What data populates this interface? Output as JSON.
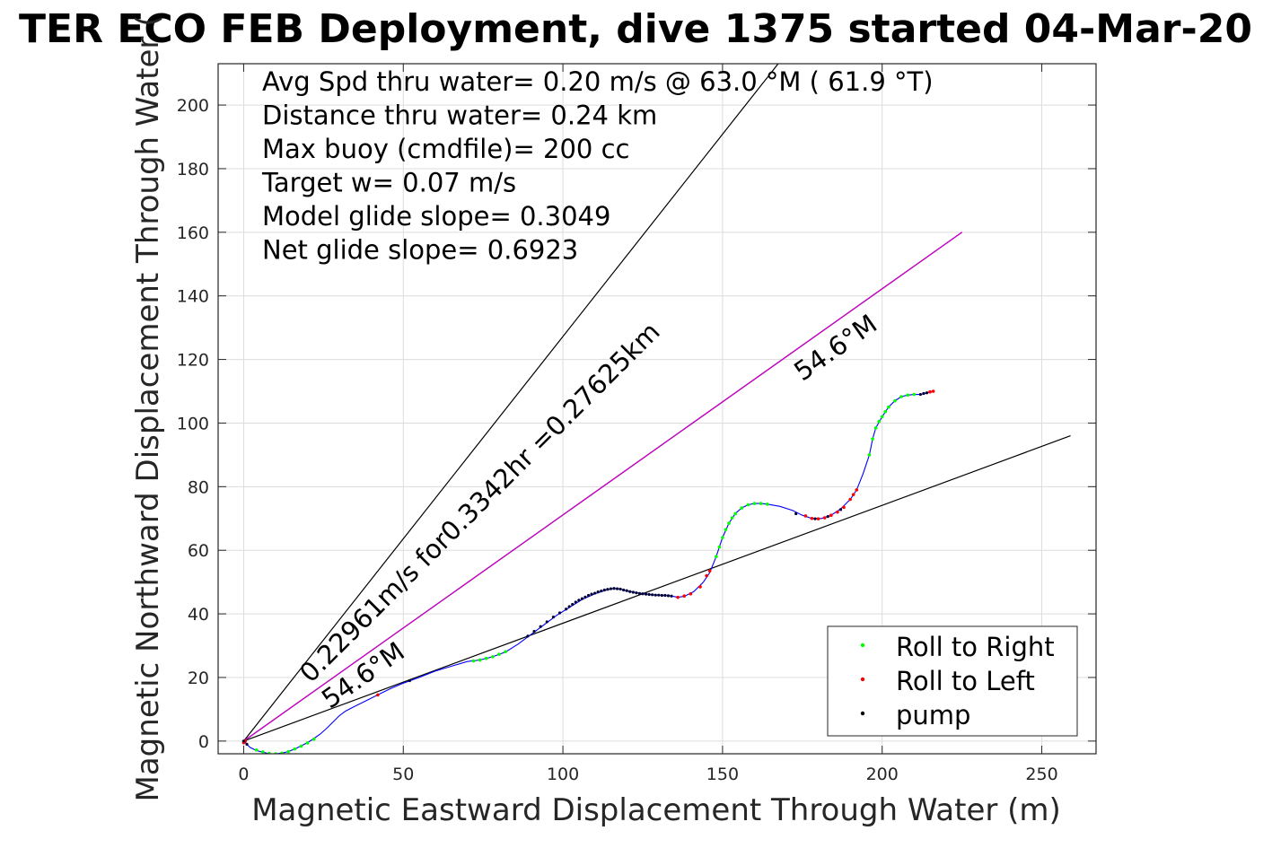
{
  "chart_data": {
    "type": "line",
    "title": "TER ECO FEB Deployment, dive 1375 started 04-Mar-20",
    "xlabel": "Magnetic Eastward Displacement Through Water (m)",
    "ylabel": "Magnetic Northward Displacement Through Water (",
    "xlim": [
      -8,
      267
    ],
    "ylim": [
      -4,
      213
    ],
    "xticks": [
      0,
      50,
      100,
      150,
      200,
      250
    ],
    "yticks": [
      0,
      20,
      40,
      60,
      80,
      100,
      120,
      140,
      160,
      180,
      200
    ],
    "grid": true,
    "legend_position": "bottom-right",
    "legend": [
      {
        "label": "Roll to Right",
        "color": "#00ff00"
      },
      {
        "label": "Roll to Left",
        "color": "#ff0000"
      },
      {
        "label": "pump",
        "color": "#000000"
      }
    ],
    "info_lines": [
      "Avg Spd thru water=  0.20 m/s @  63.0 °M ( 61.9 °T)",
      "Distance thru water=  0.24 km",
      "Max buoy (cmdfile)= 200 cc",
      "Target w= 0.07 m/s",
      "Model glide slope= 0.3049",
      "Net glide slope= 0.6923"
    ],
    "annotations": [
      {
        "text": "0.22961m/s for0.3342hr =0.27625km",
        "x": 21,
        "y": 18,
        "angle_deg": -45
      },
      {
        "text": "54.6°M",
        "x": 27,
        "y": 10,
        "angle_deg": -35
      },
      {
        "text": "54.6°M",
        "x": 175,
        "y": 113,
        "angle_deg": -35
      }
    ],
    "reference_lines": [
      {
        "name": "steep",
        "color": "#000000",
        "points": [
          [
            0,
            0
          ],
          [
            169,
            215
          ]
        ]
      },
      {
        "name": "shallow",
        "color": "#000000",
        "points": [
          [
            0,
            0
          ],
          [
            259,
            96
          ]
        ]
      },
      {
        "name": "heading",
        "color": "#000000",
        "points": [
          [
            0,
            0
          ],
          [
            225,
            160
          ]
        ]
      },
      {
        "name": "heading-overlay",
        "color": "#cc00cc",
        "points": [
          [
            0,
            0
          ],
          [
            225,
            160
          ]
        ]
      }
    ],
    "track": {
      "color": "#0000ff",
      "points": [
        [
          0,
          0
        ],
        [
          1,
          -1
        ],
        [
          2,
          -2
        ],
        [
          4,
          -3
        ],
        [
          6,
          -3.5
        ],
        [
          8,
          -4
        ],
        [
          10,
          -4
        ],
        [
          12,
          -3.8
        ],
        [
          14,
          -3.3
        ],
        [
          16,
          -2.5
        ],
        [
          18,
          -1.5
        ],
        [
          20,
          -0.5
        ],
        [
          22,
          0.8
        ],
        [
          24,
          2.2
        ],
        [
          26,
          4
        ],
        [
          28,
          6
        ],
        [
          30,
          8
        ],
        [
          32,
          9.5
        ],
        [
          35,
          11
        ],
        [
          38,
          12.5
        ],
        [
          42,
          14.5
        ],
        [
          46,
          16.5
        ],
        [
          50,
          18.2
        ],
        [
          55,
          20
        ],
        [
          60,
          22
        ],
        [
          65,
          23.5
        ],
        [
          70,
          25
        ],
        [
          74,
          25.5
        ],
        [
          78,
          26.5
        ],
        [
          82,
          28
        ],
        [
          86,
          30.5
        ],
        [
          90,
          33.5
        ],
        [
          94,
          36.5
        ],
        [
          98,
          39.5
        ],
        [
          102,
          42
        ],
        [
          106,
          44.5
        ],
        [
          110,
          46.3
        ],
        [
          114,
          47.6
        ],
        [
          116,
          48
        ],
        [
          118,
          47.8
        ],
        [
          120,
          47.2
        ],
        [
          124,
          46.5
        ],
        [
          128,
          46
        ],
        [
          132,
          45.8
        ],
        [
          134,
          45.6
        ],
        [
          136,
          45.2
        ],
        [
          138,
          45.5
        ],
        [
          141,
          47
        ],
        [
          144,
          50
        ],
        [
          146,
          53
        ],
        [
          148,
          58
        ],
        [
          150,
          64
        ],
        [
          152,
          68.5
        ],
        [
          154,
          71.5
        ],
        [
          156,
          73.3
        ],
        [
          158,
          74.3
        ],
        [
          160,
          74.7
        ],
        [
          162,
          74.7
        ],
        [
          164,
          74.5
        ],
        [
          168,
          73.8
        ],
        [
          172,
          72.5
        ],
        [
          175,
          71
        ],
        [
          178,
          70
        ],
        [
          181,
          70
        ],
        [
          184,
          71
        ],
        [
          187,
          73
        ],
        [
          190,
          76
        ],
        [
          192,
          79
        ],
        [
          194,
          84
        ],
        [
          196,
          90
        ],
        [
          197,
          95
        ],
        [
          198,
          98.5
        ],
        [
          200,
          102
        ],
        [
          202,
          105
        ],
        [
          204,
          107
        ],
        [
          206,
          108.3
        ],
        [
          208,
          108.8
        ],
        [
          210,
          109
        ],
        [
          212,
          109
        ],
        [
          214,
          109.5
        ],
        [
          216,
          110
        ]
      ]
    },
    "roll_right": [
      [
        4,
        -2.8
      ],
      [
        6,
        -3.4
      ],
      [
        8,
        -3.9
      ],
      [
        10,
        -4
      ],
      [
        12,
        -3.8
      ],
      [
        14,
        -3.3
      ],
      [
        16,
        -2.5
      ],
      [
        18,
        -1.6
      ],
      [
        20,
        -0.6
      ],
      [
        22,
        0.6
      ],
      [
        72,
        25.2
      ],
      [
        74,
        25.5
      ],
      [
        76,
        26
      ],
      [
        78,
        26.5
      ],
      [
        80,
        27.3
      ],
      [
        82,
        28.1
      ],
      [
        148,
        58
      ],
      [
        149,
        61
      ],
      [
        150,
        64
      ],
      [
        151,
        66.5
      ],
      [
        152,
        68.5
      ],
      [
        153,
        70.2
      ],
      [
        154,
        71.5
      ],
      [
        156,
        73.3
      ],
      [
        158,
        74.3
      ],
      [
        160,
        74.7
      ],
      [
        162,
        74.7
      ],
      [
        164,
        74.5
      ],
      [
        196,
        90
      ],
      [
        197,
        95
      ],
      [
        198,
        98.5
      ],
      [
        199,
        100.5
      ],
      [
        200,
        102
      ],
      [
        201,
        103.6
      ],
      [
        202,
        105
      ],
      [
        204,
        107
      ],
      [
        206,
        108.3
      ],
      [
        208,
        108.8
      ],
      [
        210,
        109
      ]
    ],
    "roll_left": [
      [
        0,
        -0.5
      ],
      [
        0.5,
        0
      ],
      [
        42,
        14.5
      ],
      [
        136,
        45.2
      ],
      [
        138,
        45.6
      ],
      [
        140,
        46.3
      ],
      [
        143,
        48.5
      ],
      [
        145,
        52
      ],
      [
        146,
        53.5
      ],
      [
        176,
        70.8
      ],
      [
        178,
        70
      ],
      [
        180,
        69.9
      ],
      [
        182,
        70.2
      ],
      [
        184,
        71
      ],
      [
        186,
        72
      ],
      [
        188,
        73.5
      ],
      [
        190,
        76
      ],
      [
        191,
        77.5
      ],
      [
        192,
        79
      ],
      [
        215,
        109.8
      ],
      [
        216,
        110
      ]
    ],
    "pump": [
      [
        0,
        0
      ],
      [
        1,
        -1
      ],
      [
        52,
        19
      ],
      [
        89,
        33
      ],
      [
        91,
        34.5
      ],
      [
        93,
        36
      ],
      [
        95,
        37.5
      ],
      [
        97,
        39
      ],
      [
        99,
        40.3
      ],
      [
        101,
        41.5
      ],
      [
        102,
        42.3
      ],
      [
        103,
        43
      ],
      [
        104,
        43.7
      ],
      [
        105,
        44.3
      ],
      [
        106,
        44.8
      ],
      [
        107,
        45.3
      ],
      [
        108,
        45.8
      ],
      [
        109,
        46.2
      ],
      [
        110,
        46.5
      ],
      [
        111,
        46.9
      ],
      [
        112,
        47.2
      ],
      [
        113,
        47.5
      ],
      [
        114,
        47.7
      ],
      [
        115,
        47.9
      ],
      [
        116,
        48
      ],
      [
        117,
        47.9
      ],
      [
        118,
        47.8
      ],
      [
        119,
        47.5
      ],
      [
        120,
        47.3
      ],
      [
        121,
        47
      ],
      [
        122,
        46.8
      ],
      [
        123,
        46.6
      ],
      [
        124,
        46.4
      ],
      [
        125,
        46.3
      ],
      [
        126,
        46.2
      ],
      [
        127,
        46.1
      ],
      [
        128,
        46
      ],
      [
        129,
        45.9
      ],
      [
        130,
        45.9
      ],
      [
        131,
        45.8
      ],
      [
        132,
        45.8
      ],
      [
        133,
        45.7
      ],
      [
        134,
        45.6
      ],
      [
        173,
        71.5
      ],
      [
        179,
        69.9
      ],
      [
        183,
        70.6
      ],
      [
        187,
        72.8
      ],
      [
        212,
        109
      ],
      [
        213,
        109.3
      ],
      [
        214,
        109.5
      ]
    ]
  }
}
